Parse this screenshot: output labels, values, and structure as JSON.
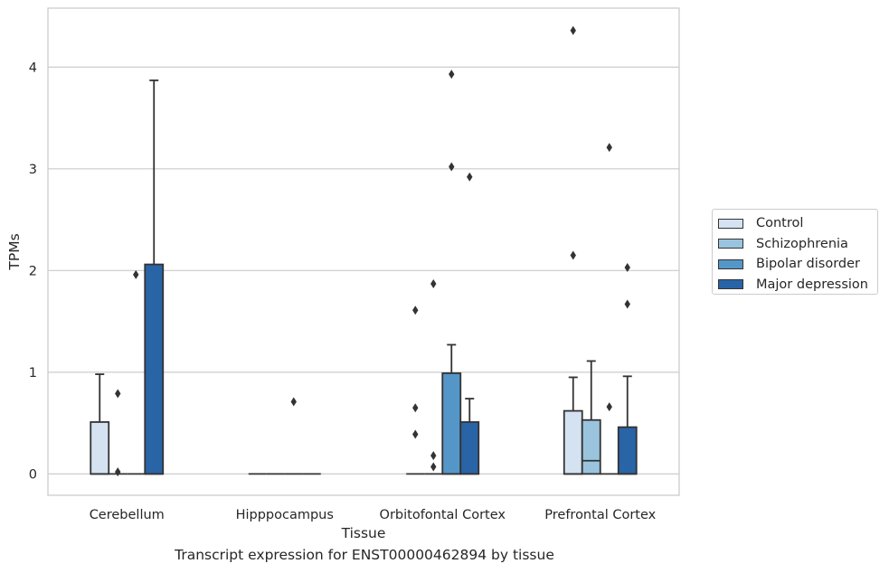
{
  "caption": "Transcript expression for ENST00000462894 by tissue",
  "colors": {
    "Control": "#d4e2f1",
    "Schizophrenia": "#9ac4de",
    "Bipolar disorder": "#5596c8",
    "Major depression": "#2964a6",
    "grid": "#cccccc",
    "line": "#333333"
  },
  "chart_data": {
    "type": "box",
    "xlabel": "Tissue",
    "ylabel": "TPMs",
    "ylim": [
      -0.21,
      4.58
    ],
    "yticks": [
      0,
      1,
      2,
      3,
      4
    ],
    "grid": "horizontal",
    "legend_position": "right",
    "categories": [
      "Cerebellum",
      "Hipppocampus",
      "Orbitofontal Cortex",
      "Prefrontal Cortex"
    ],
    "series": [
      {
        "name": "Control",
        "boxes": [
          {
            "q1": 0,
            "median": 0,
            "q3": 0.51,
            "whisker_low": 0,
            "whisker_high": 0.98,
            "outliers": []
          },
          {
            "q1": 0,
            "median": 0,
            "q3": 0,
            "whisker_low": 0,
            "whisker_high": 0,
            "outliers": []
          },
          {
            "q1": 0,
            "median": 0,
            "q3": 0,
            "whisker_low": 0,
            "whisker_high": 0,
            "outliers": [
              1.61,
              0.65,
              0.39
            ]
          },
          {
            "q1": 0,
            "median": 0,
            "q3": 0.62,
            "whisker_low": 0,
            "whisker_high": 0.95,
            "outliers": [
              4.36,
              2.15
            ]
          }
        ]
      },
      {
        "name": "Schizophrenia",
        "boxes": [
          {
            "q1": 0,
            "median": 0,
            "q3": 0,
            "whisker_low": 0,
            "whisker_high": 0,
            "outliers": [
              0.79,
              0.02
            ]
          },
          {
            "q1": 0,
            "median": 0,
            "q3": 0,
            "whisker_low": 0,
            "whisker_high": 0,
            "outliers": []
          },
          {
            "q1": 0,
            "median": 0,
            "q3": 0,
            "whisker_low": 0,
            "whisker_high": 0,
            "outliers": [
              1.87,
              0.18,
              0.07
            ]
          },
          {
            "q1": 0,
            "median": 0.13,
            "q3": 0.53,
            "whisker_low": 0,
            "whisker_high": 1.11,
            "outliers": []
          }
        ]
      },
      {
        "name": "Bipolar disorder",
        "boxes": [
          {
            "q1": 0,
            "median": 0,
            "q3": 0,
            "whisker_low": 0,
            "whisker_high": 0,
            "outliers": [
              1.96
            ]
          },
          {
            "q1": 0,
            "median": 0,
            "q3": 0,
            "whisker_low": 0,
            "whisker_high": 0,
            "outliers": [
              0.71
            ]
          },
          {
            "q1": 0,
            "median": 0,
            "q3": 0.99,
            "whisker_low": 0,
            "whisker_high": 1.27,
            "outliers": [
              3.93,
              3.02
            ]
          },
          {
            "q1": 0,
            "median": 0,
            "q3": 0,
            "whisker_low": 0,
            "whisker_high": 0,
            "outliers": [
              3.21,
              0.66
            ]
          }
        ]
      },
      {
        "name": "Major depression",
        "boxes": [
          {
            "q1": 0,
            "median": 0,
            "q3": 2.06,
            "whisker_low": 0,
            "whisker_high": 3.87,
            "outliers": []
          },
          {
            "q1": 0,
            "median": 0,
            "q3": 0,
            "whisker_low": 0,
            "whisker_high": 0,
            "outliers": []
          },
          {
            "q1": 0,
            "median": 0,
            "q3": 0.51,
            "whisker_low": 0,
            "whisker_high": 0.74,
            "outliers": [
              2.92
            ]
          },
          {
            "q1": 0,
            "median": 0,
            "q3": 0.46,
            "whisker_low": 0,
            "whisker_high": 0.96,
            "outliers": [
              2.03,
              1.67
            ]
          }
        ]
      }
    ]
  }
}
